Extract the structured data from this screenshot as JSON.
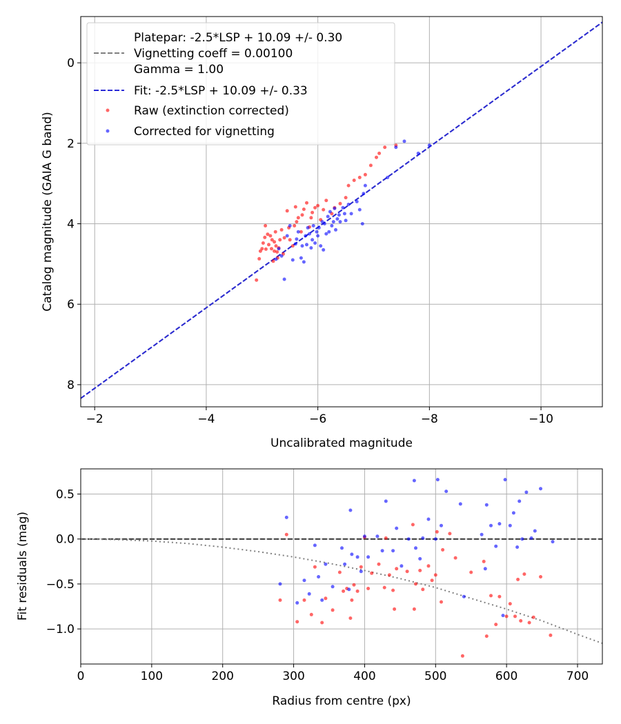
{
  "chart_data": [
    {
      "type": "scatter",
      "xlabel": "Uncalibrated magnitude",
      "ylabel": "Catalog magnitude (GAIA G band)",
      "xlim": [
        -1.75,
        -11.1
      ],
      "ylim": [
        8.55,
        -1.15
      ],
      "x_inverted": true,
      "y_inverted": true,
      "grid": true,
      "legend_position": "upper-left",
      "xticks": [
        -2,
        -4,
        -6,
        -8,
        -10
      ],
      "xtick_labels": [
        "−2",
        "−4",
        "−6",
        "−8",
        "−10"
      ],
      "yticks": [
        0,
        2,
        4,
        6,
        8
      ],
      "ytick_labels": [
        "0",
        "2",
        "4",
        "6",
        "8"
      ],
      "lines": [
        {
          "name": "Platepar: -2.5*LSP + 10.09 +/- 0.30\nVignetting coeff = 0.00100\nGamma = 1.00",
          "legend_lines": [
            "Platepar: -2.5*LSP + 10.09 +/- 0.30",
            "Vignetting coeff = 0.00100",
            "Gamma = 1.00"
          ],
          "color": "#7f7f7f",
          "style": "dashed",
          "x": [
            -1.75,
            -11.1
          ],
          "y": [
            8.34,
            -1.01
          ]
        },
        {
          "name": "Fit: -2.5*LSP + 10.09 +/- 0.33",
          "color": "#2a2ad6",
          "style": "dashed",
          "x": [
            -1.75,
            -11.1
          ],
          "y": [
            8.34,
            -1.01
          ]
        }
      ],
      "series": [
        {
          "name": "Raw (extinction corrected)",
          "color": "#ff0000",
          "points": [
            [
              -4.9,
              5.4
            ],
            [
              -4.95,
              4.87
            ],
            [
              -4.97,
              4.68
            ],
            [
              -5.0,
              4.62
            ],
            [
              -5.02,
              4.48
            ],
            [
              -5.05,
              4.34
            ],
            [
              -5.07,
              4.63
            ],
            [
              -5.1,
              4.26
            ],
            [
              -5.12,
              4.52
            ],
            [
              -5.15,
              4.3
            ],
            [
              -5.17,
              4.62
            ],
            [
              -5.18,
              4.4
            ],
            [
              -5.2,
              4.93
            ],
            [
              -5.22,
              4.45
            ],
            [
              -5.24,
              4.2
            ],
            [
              -5.25,
              4.55
            ],
            [
              -5.27,
              4.7
            ],
            [
              -5.28,
              4.85
            ],
            [
              -5.3,
              4.6
            ],
            [
              -5.32,
              4.4
            ],
            [
              -5.35,
              4.15
            ],
            [
              -5.38,
              4.75
            ],
            [
              -5.4,
              4.35
            ],
            [
              -5.45,
              3.68
            ],
            [
              -5.48,
              4.1
            ],
            [
              -5.5,
              4.4
            ],
            [
              -5.55,
              4.55
            ],
            [
              -5.58,
              4.05
            ],
            [
              -5.6,
              3.58
            ],
            [
              -5.62,
              3.95
            ],
            [
              -5.65,
              3.85
            ],
            [
              -5.7,
              4.2
            ],
            [
              -5.72,
              3.78
            ],
            [
              -5.75,
              3.64
            ],
            [
              -5.8,
              3.48
            ],
            [
              -5.85,
              4.08
            ],
            [
              -5.88,
              3.85
            ],
            [
              -5.9,
              3.72
            ],
            [
              -5.95,
              3.6
            ],
            [
              -6.0,
              3.55
            ],
            [
              -6.05,
              3.9
            ],
            [
              -6.1,
              3.65
            ],
            [
              -6.15,
              3.42
            ],
            [
              -6.25,
              3.75
            ],
            [
              -6.3,
              3.6
            ],
            [
              -6.4,
              3.5
            ],
            [
              -6.5,
              3.35
            ],
            [
              -6.55,
              3.05
            ],
            [
              -6.65,
              2.92
            ],
            [
              -6.75,
              2.85
            ],
            [
              -6.85,
              2.78
            ],
            [
              -6.95,
              2.55
            ],
            [
              -7.05,
              2.35
            ],
            [
              -7.1,
              2.25
            ],
            [
              -7.2,
              2.1
            ],
            [
              -7.4,
              2.05
            ],
            [
              -5.06,
              4.05
            ],
            [
              -5.22,
              4.68
            ]
          ]
        },
        {
          "name": "Corrected for vignetting",
          "color": "#0000ff",
          "points": [
            [
              -5.25,
              4.88
            ],
            [
              -5.3,
              4.62
            ],
            [
              -5.35,
              4.8
            ],
            [
              -5.4,
              5.38
            ],
            [
              -5.45,
              4.3
            ],
            [
              -5.5,
              4.05
            ],
            [
              -5.55,
              4.9
            ],
            [
              -5.6,
              4.5
            ],
            [
              -5.62,
              4.38
            ],
            [
              -5.65,
              4.2
            ],
            [
              -5.7,
              4.85
            ],
            [
              -5.72,
              4.55
            ],
            [
              -5.75,
              4.95
            ],
            [
              -5.78,
              4.3
            ],
            [
              -5.8,
              4.52
            ],
            [
              -5.82,
              4.1
            ],
            [
              -5.85,
              4.25
            ],
            [
              -5.88,
              4.6
            ],
            [
              -5.9,
              4.4
            ],
            [
              -5.92,
              4.05
            ],
            [
              -5.95,
              4.48
            ],
            [
              -5.98,
              4.2
            ],
            [
              -6.0,
              4.3
            ],
            [
              -6.02,
              4.1
            ],
            [
              -6.05,
              4.55
            ],
            [
              -6.08,
              3.95
            ],
            [
              -6.1,
              4.65
            ],
            [
              -6.12,
              4.0
            ],
            [
              -6.15,
              4.25
            ],
            [
              -6.18,
              3.82
            ],
            [
              -6.2,
              4.2
            ],
            [
              -6.22,
              3.7
            ],
            [
              -6.25,
              4.05
            ],
            [
              -6.28,
              3.95
            ],
            [
              -6.3,
              3.62
            ],
            [
              -6.32,
              4.15
            ],
            [
              -6.35,
              3.88
            ],
            [
              -6.38,
              3.78
            ],
            [
              -6.4,
              3.95
            ],
            [
              -6.45,
              3.6
            ],
            [
              -6.48,
              3.75
            ],
            [
              -6.5,
              3.92
            ],
            [
              -6.55,
              3.52
            ],
            [
              -6.6,
              3.75
            ],
            [
              -6.7,
              3.45
            ],
            [
              -6.75,
              3.65
            ],
            [
              -6.8,
              4.0
            ],
            [
              -6.82,
              3.25
            ],
            [
              -6.85,
              3.05
            ],
            [
              -7.25,
              2.85
            ],
            [
              -7.4,
              2.1
            ],
            [
              -7.55,
              1.95
            ],
            [
              -7.8,
              2.25
            ],
            [
              -8.0,
              2.05
            ]
          ]
        }
      ]
    },
    {
      "type": "scatter",
      "xlabel": "Radius from centre (px)",
      "ylabel": "Fit residuals (mag)",
      "xlim": [
        0,
        735
      ],
      "ylim": [
        -1.39,
        0.78
      ],
      "grid": true,
      "xticks": [
        0,
        100,
        200,
        300,
        400,
        500,
        600,
        700
      ],
      "xtick_labels": [
        "0",
        "100",
        "200",
        "300",
        "400",
        "500",
        "600",
        "700"
      ],
      "yticks": [
        0.5,
        0.0,
        -0.5,
        -1.0
      ],
      "ytick_labels": [
        "0.5",
        "0.0",
        "−0.5",
        "−1.0"
      ],
      "lines": [
        {
          "color": "#333333",
          "style": "dashed",
          "x": [
            0,
            735
          ],
          "y": [
            0,
            0
          ]
        },
        {
          "color": "#7f7f7f",
          "style": "dotted",
          "x": [
            0,
            50,
            100,
            150,
            200,
            250,
            300,
            350,
            400,
            450,
            500,
            550,
            600,
            650,
            700,
            735
          ],
          "y": [
            0,
            -0.006,
            -0.023,
            -0.05,
            -0.09,
            -0.14,
            -0.2,
            -0.27,
            -0.35,
            -0.44,
            -0.54,
            -0.66,
            -0.78,
            -0.91,
            -1.06,
            -1.16
          ]
        }
      ],
      "series": [
        {
          "name": "Raw (extinction corrected)",
          "color": "#ff0000",
          "points": [
            [
              281,
              -0.68
            ],
            [
              290,
              0.05
            ],
            [
              305,
              -0.92
            ],
            [
              315,
              -0.68
            ],
            [
              325,
              -0.84
            ],
            [
              330,
              -0.31
            ],
            [
              340,
              -0.93
            ],
            [
              345,
              -0.66
            ],
            [
              355,
              -0.79
            ],
            [
              365,
              -0.37
            ],
            [
              370,
              -0.58
            ],
            [
              375,
              -0.55
            ],
            [
              380,
              -0.88
            ],
            [
              382,
              -0.68
            ],
            [
              385,
              -0.51
            ],
            [
              390,
              -0.58
            ],
            [
              395,
              -0.31
            ],
            [
              400,
              0.02
            ],
            [
              405,
              -0.55
            ],
            [
              410,
              -0.38
            ],
            [
              420,
              -0.28
            ],
            [
              428,
              -0.54
            ],
            [
              430,
              0.01
            ],
            [
              435,
              -0.4
            ],
            [
              440,
              -0.57
            ],
            [
              442,
              -0.78
            ],
            [
              445,
              -0.33
            ],
            [
              460,
              -0.36
            ],
            [
              468,
              0.16
            ],
            [
              470,
              -0.78
            ],
            [
              472,
              -0.5
            ],
            [
              478,
              -0.35
            ],
            [
              482,
              -0.56
            ],
            [
              490,
              -0.3
            ],
            [
              495,
              -0.46
            ],
            [
              500,
              -0.4
            ],
            [
              502,
              0.08
            ],
            [
              508,
              -0.7
            ],
            [
              510,
              -0.12
            ],
            [
              520,
              0.06
            ],
            [
              528,
              -0.21
            ],
            [
              538,
              -1.3
            ],
            [
              550,
              -0.37
            ],
            [
              568,
              -0.25
            ],
            [
              572,
              -1.08
            ],
            [
              578,
              -0.63
            ],
            [
              585,
              -0.95
            ],
            [
              590,
              -0.64
            ],
            [
              600,
              -0.86
            ],
            [
              605,
              -0.72
            ],
            [
              612,
              -0.86
            ],
            [
              616,
              -0.45
            ],
            [
              620,
              -0.91
            ],
            [
              625,
              -0.39
            ],
            [
              632,
              -0.93
            ],
            [
              638,
              -0.87
            ],
            [
              648,
              -0.42
            ],
            [
              662,
              -1.07
            ]
          ]
        },
        {
          "name": "Corrected for vignetting",
          "color": "#0000ff",
          "points": [
            [
              281,
              -0.5
            ],
            [
              290,
              0.24
            ],
            [
              305,
              -0.71
            ],
            [
              315,
              -0.46
            ],
            [
              322,
              -0.61
            ],
            [
              330,
              -0.07
            ],
            [
              335,
              -0.42
            ],
            [
              340,
              -0.68
            ],
            [
              345,
              -0.28
            ],
            [
              355,
              -0.53
            ],
            [
              368,
              -0.1
            ],
            [
              372,
              -0.28
            ],
            [
              378,
              -0.56
            ],
            [
              380,
              0.32
            ],
            [
              382,
              -0.17
            ],
            [
              390,
              -0.2
            ],
            [
              395,
              -0.36
            ],
            [
              400,
              0.03
            ],
            [
              405,
              -0.2
            ],
            [
              418,
              0.03
            ],
            [
              425,
              -0.13
            ],
            [
              430,
              0.42
            ],
            [
              440,
              -0.13
            ],
            [
              445,
              0.12
            ],
            [
              452,
              -0.3
            ],
            [
              462,
              0.0
            ],
            [
              470,
              0.65
            ],
            [
              472,
              -0.1
            ],
            [
              478,
              -0.22
            ],
            [
              482,
              0.01
            ],
            [
              490,
              0.22
            ],
            [
              500,
              0.0
            ],
            [
              503,
              0.66
            ],
            [
              508,
              0.15
            ],
            [
              515,
              0.53
            ],
            [
              535,
              0.39
            ],
            [
              540,
              -0.64
            ],
            [
              565,
              0.05
            ],
            [
              570,
              -0.33
            ],
            [
              572,
              0.38
            ],
            [
              578,
              0.15
            ],
            [
              585,
              -0.08
            ],
            [
              590,
              0.17
            ],
            [
              595,
              -0.85
            ],
            [
              598,
              0.66
            ],
            [
              605,
              0.15
            ],
            [
              610,
              0.29
            ],
            [
              615,
              -0.09
            ],
            [
              618,
              0.42
            ],
            [
              622,
              0.0
            ],
            [
              628,
              0.52
            ],
            [
              635,
              0.01
            ],
            [
              640,
              0.09
            ],
            [
              648,
              0.56
            ],
            [
              665,
              -0.03
            ]
          ]
        }
      ]
    }
  ]
}
